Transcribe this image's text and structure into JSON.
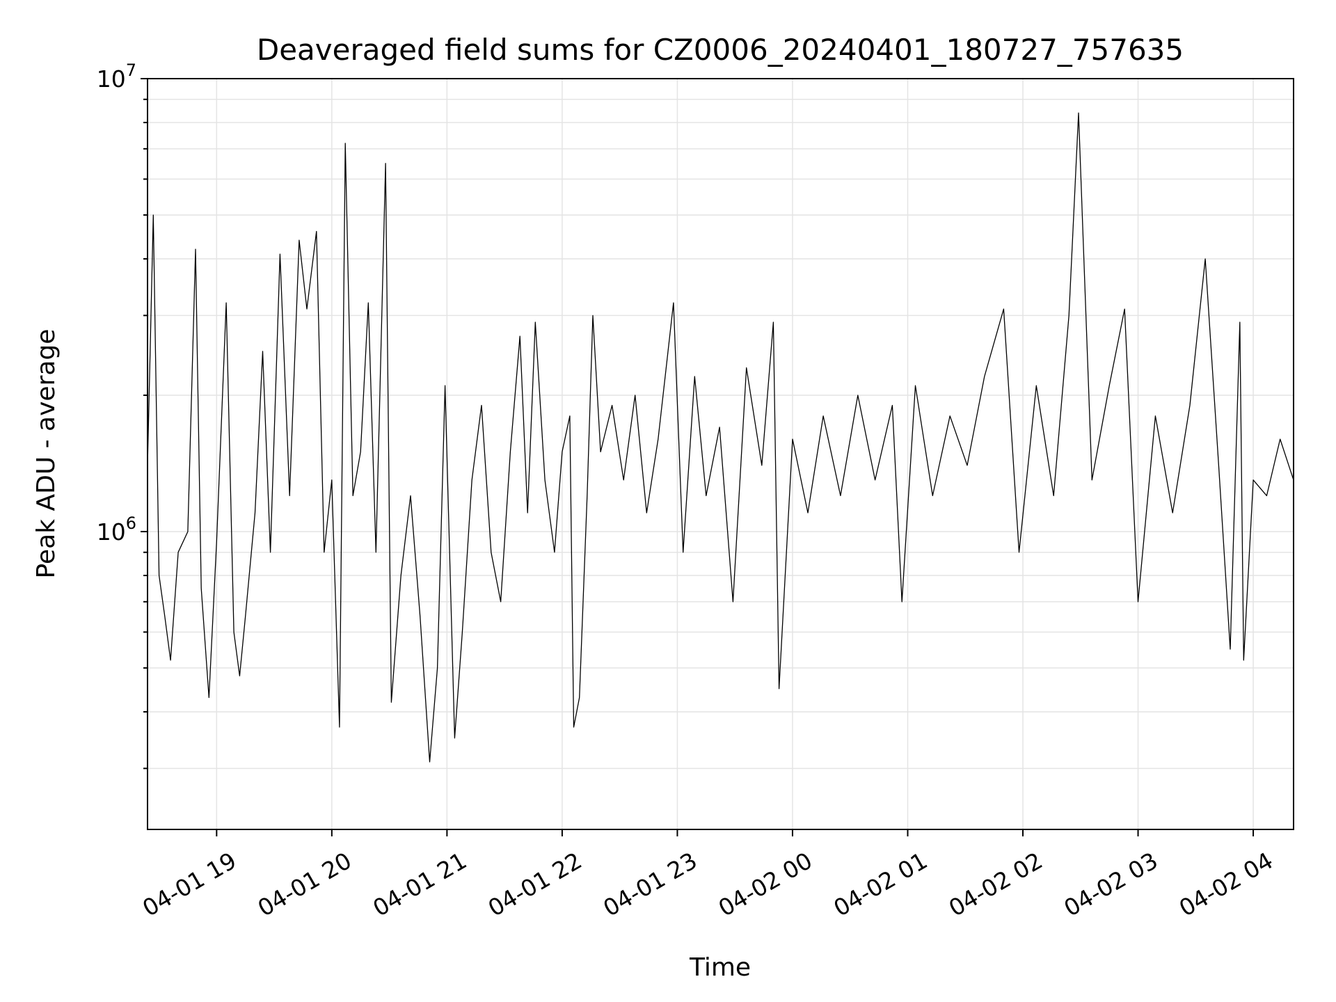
{
  "chart_data": {
    "type": "line",
    "title": "Deaveraged field sums for CZ0006_20240401_180727_757635",
    "xlabel": "Time",
    "ylabel": "Peak ADU - average",
    "yscale": "log",
    "ylim": [
      220000,
      10000000
    ],
    "xlim": [
      "2024-04-01 18:24",
      "2024-04-02 04:21"
    ],
    "grid": true,
    "line_color": "#000000",
    "x_ticks": [
      "04-01 19",
      "04-01 20",
      "04-01 21",
      "04-01 22",
      "04-01 23",
      "04-02 00",
      "04-02 01",
      "04-02 02",
      "04-02 03",
      "04-02 04"
    ],
    "y_tick_labels": [
      {
        "base": "10",
        "exp": "6",
        "value": 1000000
      },
      {
        "base": "10",
        "exp": "7",
        "value": 10000000
      }
    ],
    "series": [
      {
        "points": [
          [
            "2024-04-01 18:24",
            1400000
          ],
          [
            "2024-04-01 18:27",
            5000000
          ],
          [
            "2024-04-01 18:30",
            800000
          ],
          [
            "2024-04-01 18:33",
            650000
          ],
          [
            "2024-04-01 18:36",
            520000
          ],
          [
            "2024-04-01 18:40",
            900000
          ],
          [
            "2024-04-01 18:45",
            1000000
          ],
          [
            "2024-04-01 18:49",
            4200000
          ],
          [
            "2024-04-01 18:52",
            750000
          ],
          [
            "2024-04-01 18:56",
            430000
          ],
          [
            "2024-04-01 19:00",
            950000
          ],
          [
            "2024-04-01 19:05",
            3200000
          ],
          [
            "2024-04-01 19:09",
            600000
          ],
          [
            "2024-04-01 19:12",
            480000
          ],
          [
            "2024-04-01 19:15",
            650000
          ],
          [
            "2024-04-01 19:20",
            1100000
          ],
          [
            "2024-04-01 19:24",
            2500000
          ],
          [
            "2024-04-01 19:28",
            900000
          ],
          [
            "2024-04-01 19:33",
            4100000
          ],
          [
            "2024-04-01 19:38",
            1200000
          ],
          [
            "2024-04-01 19:43",
            4400000
          ],
          [
            "2024-04-01 19:47",
            3100000
          ],
          [
            "2024-04-01 19:52",
            4600000
          ],
          [
            "2024-04-01 19:56",
            900000
          ],
          [
            "2024-04-01 20:00",
            1300000
          ],
          [
            "2024-04-01 20:04",
            370000
          ],
          [
            "2024-04-01 20:07",
            7200000
          ],
          [
            "2024-04-01 20:11",
            1200000
          ],
          [
            "2024-04-01 20:15",
            1500000
          ],
          [
            "2024-04-01 20:19",
            3200000
          ],
          [
            "2024-04-01 20:23",
            900000
          ],
          [
            "2024-04-01 20:28",
            6500000
          ],
          [
            "2024-04-01 20:31",
            420000
          ],
          [
            "2024-04-01 20:36",
            800000
          ],
          [
            "2024-04-01 20:41",
            1200000
          ],
          [
            "2024-04-01 20:46",
            650000
          ],
          [
            "2024-04-01 20:51",
            310000
          ],
          [
            "2024-04-01 20:55",
            500000
          ],
          [
            "2024-04-01 20:59",
            2100000
          ],
          [
            "2024-04-01 21:04",
            350000
          ],
          [
            "2024-04-01 21:08",
            600000
          ],
          [
            "2024-04-01 21:13",
            1300000
          ],
          [
            "2024-04-01 21:18",
            1900000
          ],
          [
            "2024-04-01 21:23",
            900000
          ],
          [
            "2024-04-01 21:28",
            700000
          ],
          [
            "2024-04-01 21:33",
            1500000
          ],
          [
            "2024-04-01 21:38",
            2700000
          ],
          [
            "2024-04-01 21:42",
            1100000
          ],
          [
            "2024-04-01 21:46",
            2900000
          ],
          [
            "2024-04-01 21:51",
            1300000
          ],
          [
            "2024-04-01 21:56",
            900000
          ],
          [
            "2024-04-01 22:00",
            1500000
          ],
          [
            "2024-04-01 22:04",
            1800000
          ],
          [
            "2024-04-01 22:06",
            370000
          ],
          [
            "2024-04-01 22:09",
            430000
          ],
          [
            "2024-04-01 22:13",
            1200000
          ],
          [
            "2024-04-01 22:16",
            3000000
          ],
          [
            "2024-04-01 22:20",
            1500000
          ],
          [
            "2024-04-01 22:26",
            1900000
          ],
          [
            "2024-04-01 22:32",
            1300000
          ],
          [
            "2024-04-01 22:38",
            2000000
          ],
          [
            "2024-04-01 22:44",
            1100000
          ],
          [
            "2024-04-01 22:50",
            1600000
          ],
          [
            "2024-04-01 22:58",
            3200000
          ],
          [
            "2024-04-01 23:03",
            900000
          ],
          [
            "2024-04-01 23:09",
            2200000
          ],
          [
            "2024-04-01 23:15",
            1200000
          ],
          [
            "2024-04-01 23:22",
            1700000
          ],
          [
            "2024-04-01 23:29",
            700000
          ],
          [
            "2024-04-01 23:36",
            2300000
          ],
          [
            "2024-04-01 23:44",
            1400000
          ],
          [
            "2024-04-01 23:50",
            2900000
          ],
          [
            "2024-04-01 23:53",
            450000
          ],
          [
            "2024-04-02 00:00",
            1600000
          ],
          [
            "2024-04-02 00:08",
            1100000
          ],
          [
            "2024-04-02 00:16",
            1800000
          ],
          [
            "2024-04-02 00:25",
            1200000
          ],
          [
            "2024-04-02 00:34",
            2000000
          ],
          [
            "2024-04-02 00:43",
            1300000
          ],
          [
            "2024-04-02 00:52",
            1900000
          ],
          [
            "2024-04-02 00:57",
            700000
          ],
          [
            "2024-04-02 01:04",
            2100000
          ],
          [
            "2024-04-02 01:13",
            1200000
          ],
          [
            "2024-04-02 01:22",
            1800000
          ],
          [
            "2024-04-02 01:31",
            1400000
          ],
          [
            "2024-04-02 01:40",
            2200000
          ],
          [
            "2024-04-02 01:50",
            3100000
          ],
          [
            "2024-04-02 01:58",
            900000
          ],
          [
            "2024-04-02 02:07",
            2100000
          ],
          [
            "2024-04-02 02:16",
            1200000
          ],
          [
            "2024-04-02 02:24",
            3000000
          ],
          [
            "2024-04-02 02:29",
            8400000
          ],
          [
            "2024-04-02 02:36",
            1300000
          ],
          [
            "2024-04-02 02:45",
            2100000
          ],
          [
            "2024-04-02 02:53",
            3100000
          ],
          [
            "2024-04-02 03:00",
            700000
          ],
          [
            "2024-04-02 03:09",
            1800000
          ],
          [
            "2024-04-02 03:18",
            1100000
          ],
          [
            "2024-04-02 03:27",
            1900000
          ],
          [
            "2024-04-02 03:35",
            4000000
          ],
          [
            "2024-04-02 03:42",
            1400000
          ],
          [
            "2024-04-02 03:48",
            550000
          ],
          [
            "2024-04-02 03:53",
            2900000
          ],
          [
            "2024-04-02 03:55",
            520000
          ],
          [
            "2024-04-02 04:00",
            1300000
          ],
          [
            "2024-04-02 04:07",
            1200000
          ],
          [
            "2024-04-02 04:14",
            1600000
          ],
          [
            "2024-04-02 04:21",
            1300000
          ]
        ]
      }
    ]
  }
}
